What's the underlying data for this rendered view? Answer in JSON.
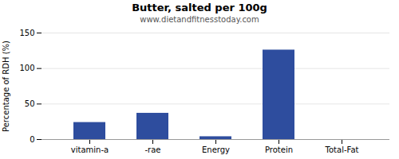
{
  "chart_data": {
    "type": "bar",
    "title": "Butter, salted per 100g",
    "subtitle": "www.dietandfitnesstoday.com",
    "categories": [
      "vitamin-a",
      "-rae",
      "Energy",
      "Protein",
      "Total-Fat"
    ],
    "values": [
      24,
      37,
      4,
      126,
      0
    ],
    "color": "#2e4d9e",
    "ylabel": "Percentage of RDH (%)",
    "ylim": [
      0,
      150
    ],
    "yticks": [
      0,
      50,
      100,
      150
    ],
    "grid": true
  }
}
